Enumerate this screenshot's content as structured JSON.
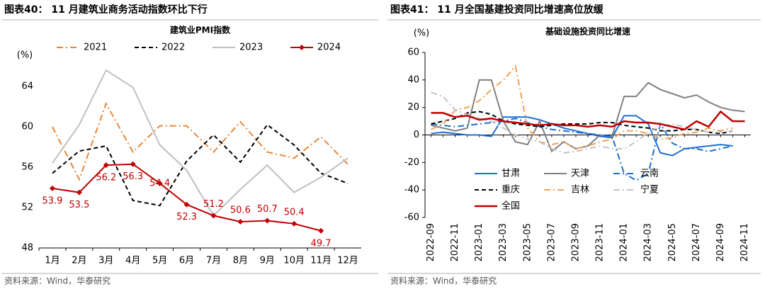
{
  "chart_data": [
    {
      "type": "line",
      "title": "图表40：  11 月建筑业商务活动指数环比下行",
      "subtitle": "建筑业PMI指数",
      "y_label": "(%)",
      "source": "资料来源：Wind，华泰研究",
      "categories": [
        "1月",
        "2月",
        "3月",
        "4月",
        "5月",
        "6月",
        "7月",
        "8月",
        "9月",
        "10月",
        "11月",
        "12月"
      ],
      "ylim": [
        48,
        66
      ],
      "yticks": [
        48,
        52,
        56,
        60,
        64
      ],
      "legend": "top",
      "series": [
        {
          "name": "2021",
          "color": "#e8873a",
          "style": "dashdot",
          "values": [
            60.0,
            54.8,
            62.3,
            57.5,
            60.1,
            60.1,
            57.5,
            60.5,
            57.5,
            56.9,
            59.0,
            56.3
          ]
        },
        {
          "name": "2022",
          "color": "#000000",
          "style": "dash",
          "values": [
            55.4,
            57.6,
            58.1,
            52.7,
            52.2,
            56.6,
            59.2,
            56.5,
            60.2,
            58.2,
            55.4,
            54.4
          ]
        },
        {
          "name": "2023",
          "color": "#c0c0c0",
          "style": "solid",
          "values": [
            56.4,
            60.2,
            65.6,
            63.9,
            58.2,
            55.7,
            51.2,
            53.8,
            56.2,
            53.5,
            55.0,
            56.9
          ]
        },
        {
          "name": "2024",
          "color": "#c00000",
          "style": "solid",
          "markers": true,
          "data_labels": true,
          "values": [
            53.9,
            53.5,
            56.2,
            56.3,
            54.4,
            52.3,
            51.2,
            50.6,
            50.7,
            50.4,
            49.7,
            null
          ]
        }
      ]
    },
    {
      "type": "line",
      "title": "图表41：  11 月全国基建投资同比增速高位放缓",
      "subtitle": "基础设施投资同比增速",
      "y_label": "(%)",
      "source": "资料来源：Wind，华泰研究",
      "categories": [
        "2022-09",
        null,
        "2022-11",
        null,
        "2023-01",
        null,
        "2023-03",
        null,
        "2023-05",
        null,
        "2023-07",
        null,
        "2023-09",
        null,
        "2023-11",
        null,
        "2024-01",
        null,
        "2024-03",
        null,
        "2024-05",
        null,
        "2024-07",
        null,
        "2024-09",
        null,
        "2024-11"
      ],
      "ylim": [
        -60,
        60
      ],
      "yticks": [
        -60,
        -40,
        -20,
        0,
        20,
        40,
        60
      ],
      "legend": "lower left",
      "series": [
        {
          "name": "甘肃",
          "color": "#1f6fd1",
          "style": "solid",
          "values": [
            1,
            2,
            1,
            0,
            0,
            -1,
            13,
            13,
            13,
            11,
            8,
            5,
            3,
            1,
            -1,
            -2,
            14,
            14,
            8,
            -13,
            -15,
            -10,
            -9,
            -8,
            -7,
            -8,
            null
          ]
        },
        {
          "name": "天津",
          "color": "#808080",
          "style": "solid",
          "values": [
            7,
            5,
            3,
            5,
            40,
            40,
            10,
            -5,
            -7,
            10,
            -12,
            -5,
            -10,
            -8,
            0,
            -1,
            28,
            28,
            38,
            33,
            30,
            27,
            29,
            24,
            20,
            18,
            17
          ]
        },
        {
          "name": "云南",
          "color": "#1f6fd1",
          "style": "dashdot",
          "values": [
            8,
            7,
            6,
            7,
            8,
            9,
            10,
            12,
            9,
            6,
            4,
            3,
            2,
            1,
            0,
            -1,
            -28,
            -33,
            -28,
            8,
            -6,
            -10,
            -10,
            -12,
            -10,
            -8,
            null
          ]
        },
        {
          "name": "重庆",
          "color": "#000000",
          "style": "dash",
          "values": [
            8,
            10,
            12,
            16,
            17,
            15,
            10,
            8,
            7,
            6,
            7,
            8,
            8,
            8,
            9,
            9,
            7,
            6,
            5,
            3,
            3,
            4,
            4,
            2,
            1,
            3,
            null
          ]
        },
        {
          "name": "吉林",
          "color": "#eea25a",
          "style": "dashdot",
          "values": [
            4,
            8,
            18,
            20,
            25,
            33,
            40,
            50,
            5,
            -5,
            -7,
            -5,
            -10,
            -8,
            -5,
            -3,
            3,
            3,
            1,
            -3,
            -2,
            1,
            2,
            5,
            3,
            5,
            null
          ]
        },
        {
          "name": "宁夏",
          "color": "#c4c4c4",
          "style": "dashdot",
          "values": [
            31,
            28,
            18,
            15,
            12,
            10,
            5,
            0,
            -3,
            -5,
            -10,
            -13,
            -12,
            -10,
            -8,
            -10,
            -10,
            -5,
            2,
            6,
            8,
            6,
            4,
            2,
            2,
            3,
            null
          ]
        },
        {
          "name": "全国",
          "color": "#c00000",
          "style": "solid",
          "width": 2.5,
          "values": [
            16,
            16,
            13,
            14,
            11,
            12,
            10,
            9,
            8,
            7,
            8,
            7,
            7,
            6,
            7,
            6,
            10,
            9,
            9,
            8,
            6,
            4,
            10,
            6,
            17,
            10,
            10
          ]
        }
      ]
    }
  ]
}
